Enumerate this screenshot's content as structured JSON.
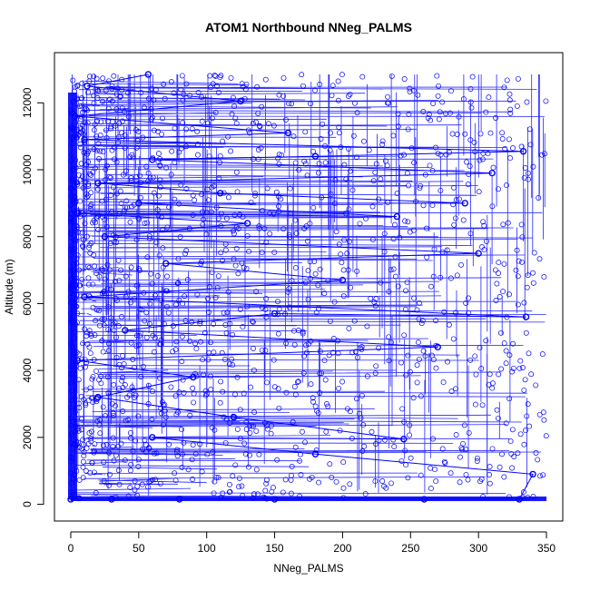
{
  "chart_data": {
    "type": "scatter",
    "title": "ATOM1 Northbound NNeg_PALMS",
    "xlabel": "NNeg_PALMS",
    "ylabel": "Altitude (m)",
    "xlim": [
      -12,
      362
    ],
    "ylim": [
      -500,
      13500
    ],
    "x_ticks": [
      0,
      50,
      100,
      150,
      200,
      250,
      300,
      350
    ],
    "y_ticks": [
      0,
      2000,
      4000,
      6000,
      8000,
      10000,
      12000
    ],
    "grid": false,
    "legend": "none",
    "marker": "open-circle",
    "connected": true,
    "series_color": "#0000ff",
    "series": [
      {
        "values": [
          [
            0,
            150
          ],
          [
            30,
            150
          ],
          [
            80,
            150
          ],
          [
            150,
            150
          ],
          [
            260,
            150
          ],
          [
            330,
            150
          ],
          [
            340,
            900
          ],
          [
            180,
            1500
          ],
          [
            60,
            2000
          ],
          [
            245,
            1950
          ],
          [
            120,
            2600
          ],
          [
            20,
            3200
          ],
          [
            90,
            3800
          ],
          [
            5,
            4300
          ],
          [
            270,
            4700
          ],
          [
            40,
            5200
          ],
          [
            150,
            5700
          ],
          [
            335,
            5600
          ],
          [
            10,
            6200
          ],
          [
            200,
            6700
          ],
          [
            70,
            7200
          ],
          [
            300,
            7500
          ],
          [
            25,
            8000
          ],
          [
            130,
            8400
          ],
          [
            5,
            8700
          ],
          [
            240,
            8600
          ],
          [
            50,
            9000
          ],
          [
            290,
            9000
          ],
          [
            110,
            9300
          ],
          [
            20,
            9600
          ],
          [
            310,
            9900
          ],
          [
            60,
            10300
          ],
          [
            180,
            10400
          ],
          [
            333,
            10550
          ],
          [
            10,
            10900
          ],
          [
            160,
            11100
          ],
          [
            3,
            11600
          ],
          [
            125,
            12050
          ],
          [
            12,
            12500
          ],
          [
            57,
            12850
          ]
        ]
      }
    ]
  }
}
